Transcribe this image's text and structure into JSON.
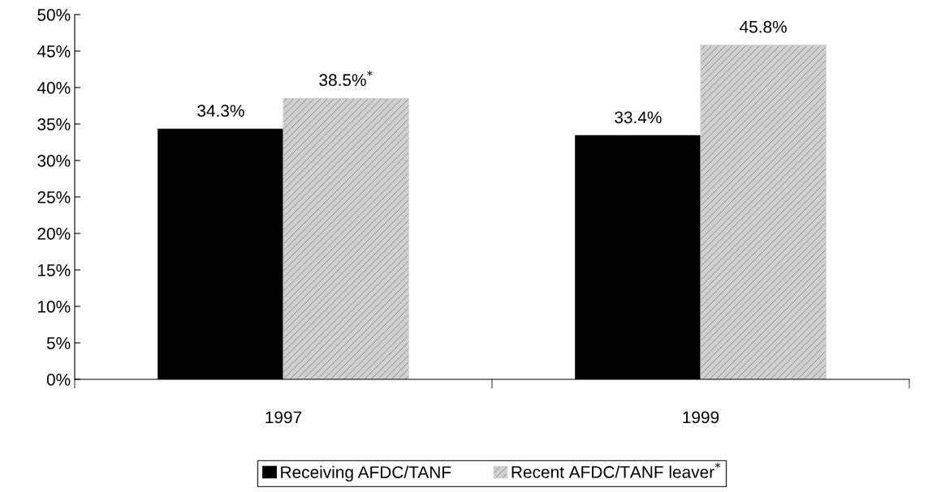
{
  "chart_data": {
    "type": "bar",
    "categories": [
      "1997",
      "1999"
    ],
    "series": [
      {
        "name": "Receiving AFDC/TANF",
        "color": "#000000",
        "values": [
          34.3,
          33.4
        ],
        "value_labels": [
          "34.3%",
          "33.4%"
        ]
      },
      {
        "name": "Recent AFDC/TANF leaver$^{*}$",
        "color": "#d0d0d0",
        "values": [
          38.5,
          45.8
        ],
        "value_labels": [
          "38.5%$^{*}$",
          "45.8%"
        ]
      }
    ],
    "ylim": [
      0,
      50
    ],
    "yticks": [
      {
        "value": 0,
        "label": "0%"
      },
      {
        "value": 5,
        "label": "5%"
      },
      {
        "value": 10,
        "label": "10%"
      },
      {
        "value": 15,
        "label": "15%"
      },
      {
        "value": 20,
        "label": "20%"
      },
      {
        "value": 25,
        "label": "25%"
      },
      {
        "value": 30,
        "label": "30%"
      },
      {
        "value": 35,
        "label": "35%"
      },
      {
        "value": 40,
        "label": "40%"
      },
      {
        "value": 45,
        "label": "45%"
      },
      {
        "value": 50,
        "label": "50%"
      }
    ],
    "grid": false,
    "legend": "bottom"
  }
}
